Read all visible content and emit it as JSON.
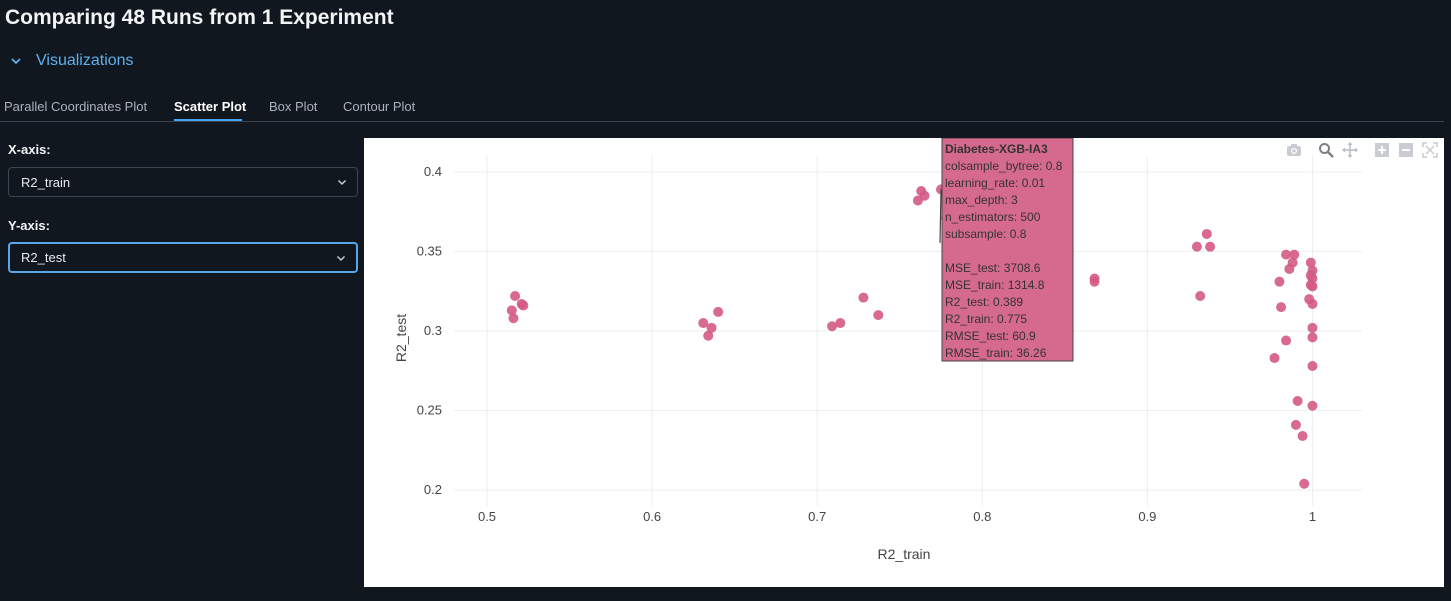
{
  "page": {
    "title": "Comparing 48 Runs from 1 Experiment"
  },
  "section": {
    "label": "Visualizations"
  },
  "tabs": [
    {
      "label": "Parallel Coordinates Plot",
      "active": false
    },
    {
      "label": "Scatter Plot",
      "active": true
    },
    {
      "label": "Box Plot",
      "active": false
    },
    {
      "label": "Contour Plot",
      "active": false
    }
  ],
  "controls": {
    "x_axis": {
      "label": "X-axis:",
      "value": "R2_train"
    },
    "y_axis": {
      "label": "Y-axis:",
      "value": "R2_test"
    }
  },
  "modebar": [
    "camera-icon",
    "zoom-icon",
    "pan-icon",
    "zoom-in-icon",
    "zoom-out-icon",
    "autoscale-icon"
  ],
  "colors": {
    "accent": "#4aa3ee",
    "marker": "#d45a85",
    "tooltip_bg": "#d66a8e"
  },
  "chart_data": {
    "type": "scatter",
    "title": "",
    "xlabel": "R2_train",
    "ylabel": "R2_test",
    "xlim": [
      0.48,
      1.03
    ],
    "ylim": [
      0.19,
      0.41
    ],
    "xticks": [
      0.5,
      0.6,
      0.7,
      0.8,
      0.9,
      1
    ],
    "xtick_labels": [
      "0.5",
      "0.6",
      "0.7",
      "0.8",
      "0.9",
      "1"
    ],
    "yticks": [
      0.2,
      0.25,
      0.3,
      0.35,
      0.4
    ],
    "ytick_labels": [
      "0.2",
      "0.25",
      "0.3",
      "0.35",
      "0.4"
    ],
    "grid": true,
    "points": [
      {
        "x": 0.517,
        "y": 0.322
      },
      {
        "x": 0.522,
        "y": 0.316
      },
      {
        "x": 0.515,
        "y": 0.313
      },
      {
        "x": 0.516,
        "y": 0.308
      },
      {
        "x": 0.631,
        "y": 0.305
      },
      {
        "x": 0.64,
        "y": 0.312
      },
      {
        "x": 0.636,
        "y": 0.302
      },
      {
        "x": 0.634,
        "y": 0.297
      },
      {
        "x": 0.709,
        "y": 0.303
      },
      {
        "x": 0.714,
        "y": 0.305
      },
      {
        "x": 0.728,
        "y": 0.321
      },
      {
        "x": 0.737,
        "y": 0.31
      },
      {
        "x": 0.763,
        "y": 0.388
      },
      {
        "x": 0.761,
        "y": 0.382
      },
      {
        "x": 0.775,
        "y": 0.389
      },
      {
        "x": 0.778,
        "y": 0.371
      },
      {
        "x": 0.868,
        "y": 0.333
      },
      {
        "x": 0.868,
        "y": 0.331
      },
      {
        "x": 0.93,
        "y": 0.353
      },
      {
        "x": 0.936,
        "y": 0.361
      },
      {
        "x": 0.938,
        "y": 0.353
      },
      {
        "x": 0.932,
        "y": 0.322
      },
      {
        "x": 0.984,
        "y": 0.348
      },
      {
        "x": 0.989,
        "y": 0.348
      },
      {
        "x": 0.988,
        "y": 0.343
      },
      {
        "x": 0.98,
        "y": 0.331
      },
      {
        "x": 0.986,
        "y": 0.339
      },
      {
        "x": 0.981,
        "y": 0.315
      },
      {
        "x": 0.984,
        "y": 0.294
      },
      {
        "x": 0.977,
        "y": 0.283
      },
      {
        "x": 0.999,
        "y": 0.343
      },
      {
        "x": 1.0,
        "y": 0.338
      },
      {
        "x": 0.999,
        "y": 0.335
      },
      {
        "x": 1.0,
        "y": 0.333
      },
      {
        "x": 0.999,
        "y": 0.329
      },
      {
        "x": 1.0,
        "y": 0.328
      },
      {
        "x": 0.998,
        "y": 0.32
      },
      {
        "x": 1.0,
        "y": 0.317
      },
      {
        "x": 1.0,
        "y": 0.302
      },
      {
        "x": 1.0,
        "y": 0.296
      },
      {
        "x": 1.0,
        "y": 0.278
      },
      {
        "x": 1.0,
        "y": 0.253
      },
      {
        "x": 0.991,
        "y": 0.256
      },
      {
        "x": 0.99,
        "y": 0.241
      },
      {
        "x": 0.994,
        "y": 0.234
      },
      {
        "x": 0.995,
        "y": 0.204
      },
      {
        "x": 0.765,
        "y": 0.385
      },
      {
        "x": 0.521,
        "y": 0.317
      }
    ],
    "hover": {
      "target": {
        "x": 0.775,
        "y": 0.389
      },
      "name": "Diabetes-XGB-IA3",
      "lines": [
        "colsample_bytree: 0.8",
        "learning_rate: 0.01",
        "max_depth: 3",
        "n_estimators: 500",
        "subsample: 0.8",
        "",
        "MSE_test: 3708.6",
        "MSE_train: 1314.8",
        "R2_test: 0.389",
        "R2_train: 0.775",
        "RMSE_test: 60.9",
        "RMSE_train: 36.26"
      ]
    }
  }
}
